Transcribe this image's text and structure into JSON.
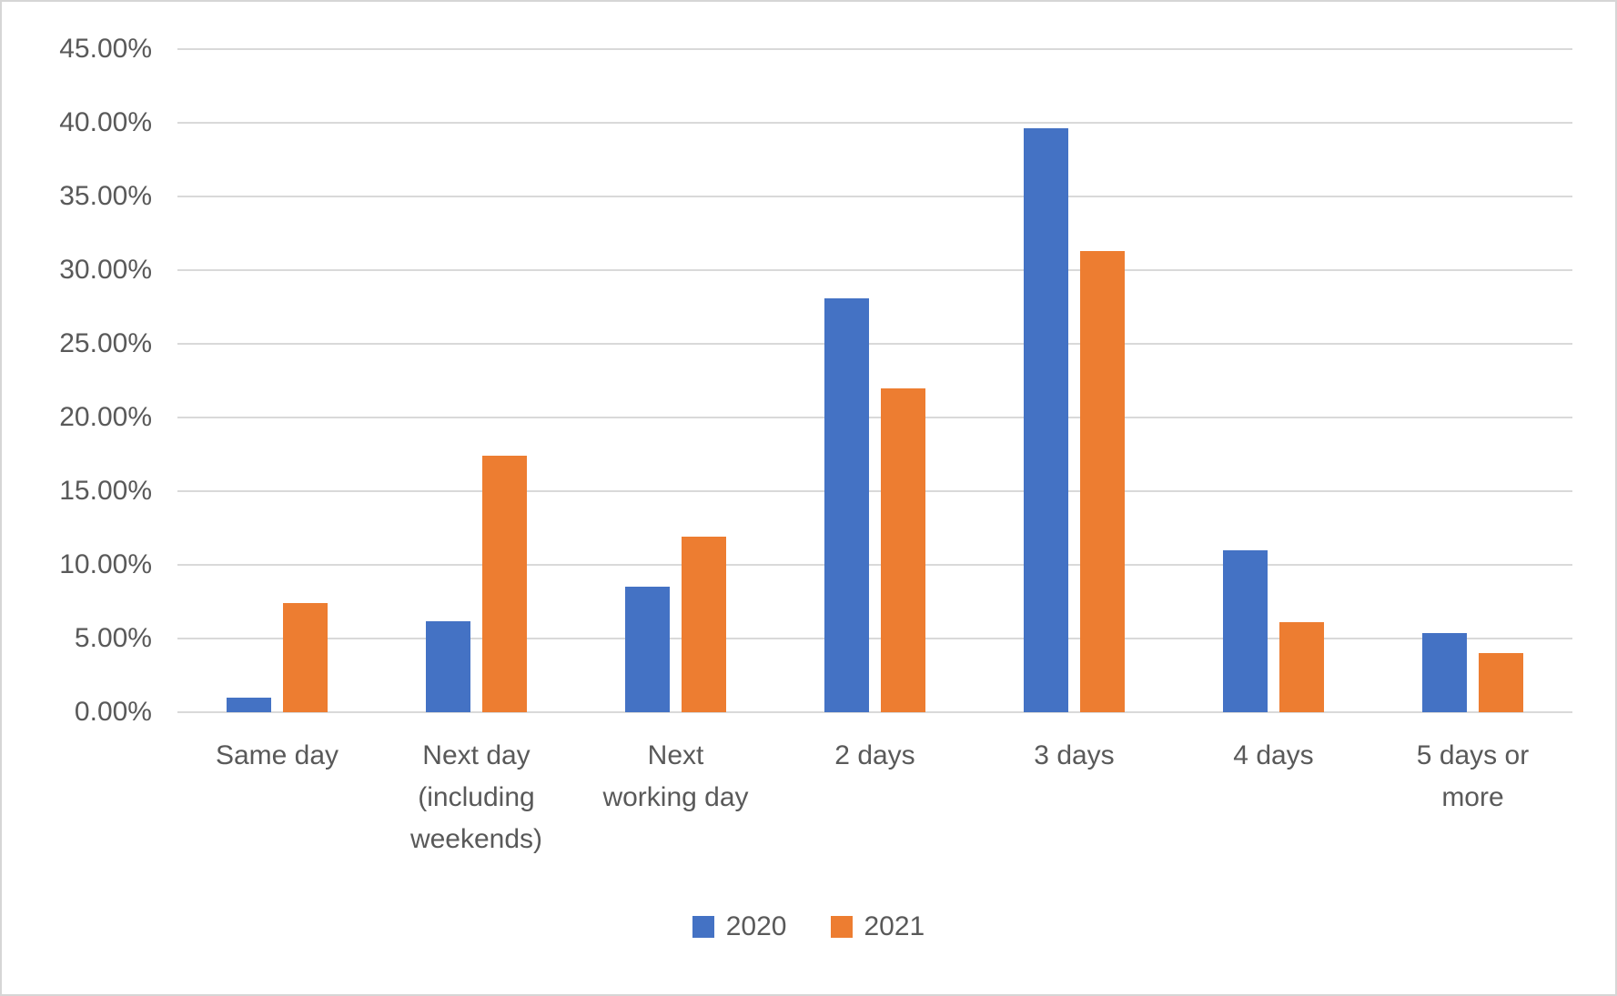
{
  "chart_data": {
    "type": "bar",
    "title": "",
    "xlabel": "",
    "ylabel": "",
    "categories": [
      "Same day",
      "Next day\n(including\nweekends)",
      "Next\nworking day",
      "2 days",
      "3 days",
      "4 days",
      "5 days or\nmore"
    ],
    "series": [
      {
        "name": "2020",
        "color": "#4472C4",
        "values": [
          1.0,
          6.2,
          8.5,
          28.1,
          39.6,
          11.0,
          5.4
        ]
      },
      {
        "name": "2021",
        "color": "#ED7D31",
        "values": [
          7.4,
          17.4,
          11.9,
          22.0,
          31.3,
          6.1,
          4.0
        ]
      }
    ],
    "y_axis": {
      "min": 0,
      "max": 45,
      "step": 5,
      "unit": "%",
      "tick_labels": [
        "45.00%",
        "40.00%",
        "35.00%",
        "30.00%",
        "25.00%",
        "20.00%",
        "15.00%",
        "10.00%",
        "5.00%",
        "0.00%"
      ]
    },
    "grid": true,
    "gridline_color": "#d9d9d9",
    "text_color": "#595959",
    "legend": {
      "position": "bottom",
      "entries": [
        "2020",
        "2021"
      ]
    }
  }
}
